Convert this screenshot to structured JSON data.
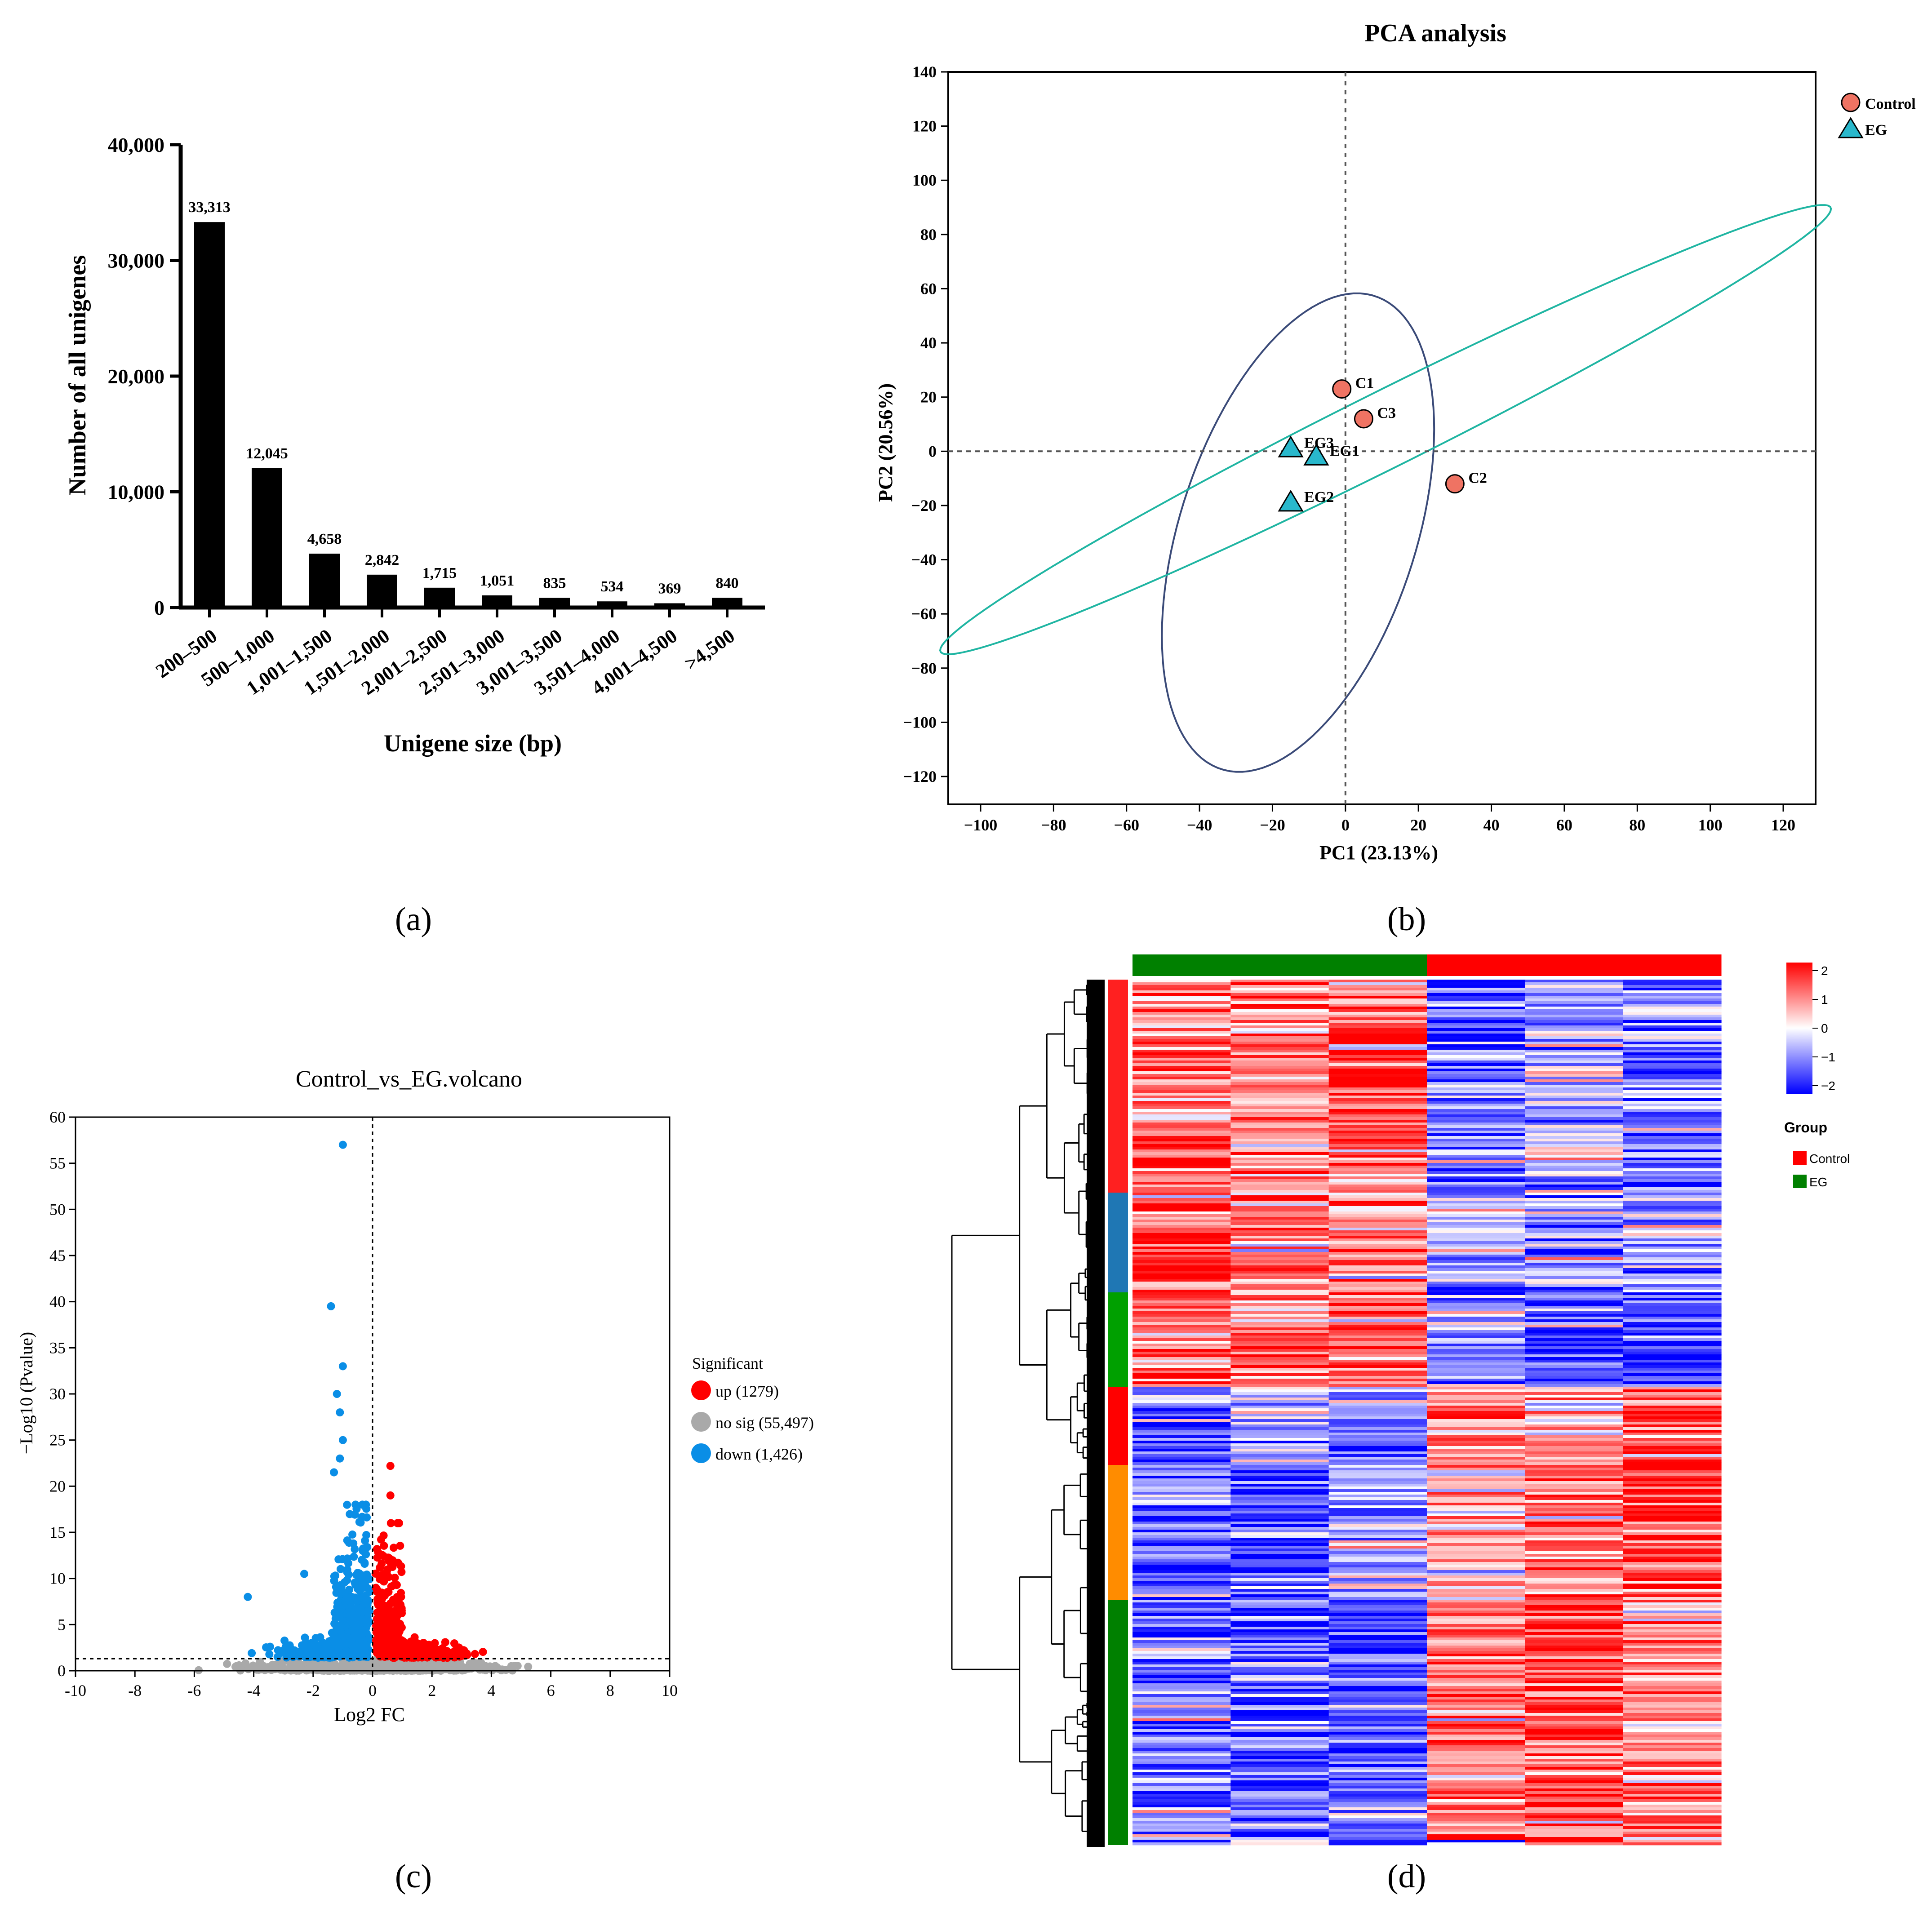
{
  "panels": {
    "a": "(a)",
    "b": "(b)",
    "c": "(c)",
    "d": "(d)"
  },
  "colors": {
    "bar": "#000000",
    "control": "#ef7363",
    "eg": "#29b8cc",
    "ellipse_control": "#3a4a78",
    "ellipse_eg": "#1fb5a2",
    "up": "#ff0000",
    "nosig": "#a9a9a9",
    "down": "#0a8ee6",
    "group_control": "#ff0000",
    "group_eg": "#008000",
    "heat_high": "#ff0000",
    "heat_mid": "#ffffff",
    "heat_low": "#0000ff"
  },
  "chart_data": [
    {
      "id": "a",
      "type": "bar",
      "title": "",
      "xlabel": "Unigene size (bp)",
      "ylabel": "Number of all unigenes",
      "ylim": [
        0,
        40000
      ],
      "yticks": [
        "0",
        "10,000",
        "20,000",
        "30,000",
        "40,000"
      ],
      "categories": [
        "200–500",
        "500–1,000",
        "1,001–1,500",
        "1,501–2,000",
        "2,001–2,500",
        "2,501–3,000",
        "3,001–3,500",
        "3,501–4,000",
        "4,001–4,500",
        ">4,500"
      ],
      "values": [
        33313,
        12045,
        4658,
        2842,
        1715,
        1051,
        835,
        534,
        369,
        840
      ],
      "value_labels": [
        "33,313",
        "12,045",
        "4,658",
        "2,842",
        "1,715",
        "1,051",
        "835",
        "534",
        "369",
        "840"
      ]
    },
    {
      "id": "b",
      "type": "scatter",
      "title": "PCA analysis",
      "xlabel": "PC1 (23.13%)",
      "ylabel": "PC2 (20.56%)",
      "xlim": [
        -100,
        120
      ],
      "ylim": [
        -120,
        140
      ],
      "xticks": [
        "−100",
        "−80",
        "−60",
        "−40",
        "−20",
        "0",
        "20",
        "40",
        "60",
        "80",
        "100",
        "120"
      ],
      "yticks": [
        "−120",
        "−100",
        "−80",
        "−60",
        "−40",
        "−20",
        "0",
        "20",
        "40",
        "60",
        "80",
        "100",
        "120",
        "140"
      ],
      "legend": [
        {
          "name": "Control"
        },
        {
          "name": "EG"
        }
      ],
      "series": [
        {
          "name": "Control",
          "marker": "circle",
          "points": [
            {
              "label": "C1",
              "x": -1,
              "y": 23
            },
            {
              "label": "C3",
              "x": 5,
              "y": 12
            },
            {
              "label": "C2",
              "x": 30,
              "y": -12
            }
          ]
        },
        {
          "name": "EG",
          "marker": "triangle",
          "points": [
            {
              "label": "EG3",
              "x": -15,
              "y": 1
            },
            {
              "label": "EG1",
              "x": -8,
              "y": -2
            },
            {
              "label": "EG2",
              "x": -15,
              "y": -19
            }
          ]
        }
      ],
      "ellipses": [
        {
          "group": "Control",
          "cx": -13,
          "cy": -30,
          "rx": 90,
          "ry": 33,
          "angle_deg": -78
        },
        {
          "group": "EG",
          "cx": 11,
          "cy": 8,
          "rx": 147,
          "ry": 13,
          "angle_deg": -34
        }
      ],
      "reference_lines": {
        "x": 0,
        "y": 0
      }
    },
    {
      "id": "c",
      "type": "scatter",
      "title": "Control_vs_EG.volcano",
      "xlabel": "Log2 FC",
      "ylabel": "−Log10 (Pvalue)",
      "xlim": [
        -10,
        10
      ],
      "ylim": [
        0,
        60
      ],
      "xticks": [
        "-10",
        "-8",
        "-6",
        "-4",
        "-2",
        "0",
        "2",
        "4",
        "6",
        "8",
        "10"
      ],
      "yticks": [
        "0",
        "5",
        "10",
        "15",
        "20",
        "25",
        "30",
        "35",
        "40",
        "45",
        "50",
        "55",
        "60"
      ],
      "threshold_y": 1.3,
      "threshold_x": 0,
      "legend_title": "Significant",
      "legend": [
        {
          "name": "up (1279)"
        },
        {
          "name": "no sig (55,497)"
        },
        {
          "name": "down (1,426)"
        }
      ],
      "highlight_points": [
        {
          "group": "down",
          "x": -1.0,
          "y": 57
        },
        {
          "group": "down",
          "x": -1.4,
          "y": 39.5
        },
        {
          "group": "down",
          "x": -1.0,
          "y": 33
        },
        {
          "group": "down",
          "x": -1.2,
          "y": 30
        },
        {
          "group": "down",
          "x": -1.1,
          "y": 28
        },
        {
          "group": "down",
          "x": -1.0,
          "y": 25
        },
        {
          "group": "down",
          "x": -1.1,
          "y": 23
        },
        {
          "group": "down",
          "x": -1.3,
          "y": 21.5
        },
        {
          "group": "up",
          "x": 0.6,
          "y": 22.2
        },
        {
          "group": "up",
          "x": 0.6,
          "y": 19
        },
        {
          "group": "down",
          "x": -4.2,
          "y": 8
        },
        {
          "group": "down",
          "x": -2.3,
          "y": 10.5
        }
      ]
    },
    {
      "id": "d",
      "type": "heatmap",
      "title": "",
      "columns": 6,
      "column_groups": [
        "EG",
        "EG",
        "EG",
        "Control",
        "Control",
        "Control"
      ],
      "color_scale": {
        "min": -2,
        "max": 2,
        "ticks": [
          "2",
          "1",
          "0",
          "−1",
          "−2"
        ]
      },
      "legend_title": "Group",
      "legend": [
        {
          "name": "Control"
        },
        {
          "name": "EG"
        }
      ],
      "row_clusters": [
        {
          "color": "#ff2020",
          "fraction": 0.245,
          "pattern": [
            1.2,
            0.9,
            1.3,
            -1.2,
            -0.6,
            -1.0
          ]
        },
        {
          "color": "#1f77b4",
          "fraction": 0.115,
          "pattern": [
            1.5,
            1.0,
            0.8,
            -0.7,
            -0.6,
            -1.1
          ]
        },
        {
          "color": "#00a000",
          "fraction": 0.11,
          "pattern": [
            1.0,
            1.0,
            1.2,
            -1.0,
            -1.3,
            -1.4
          ]
        },
        {
          "color": "#ff0000",
          "fraction": 0.09,
          "pattern": [
            -1.3,
            -0.9,
            -1.1,
            1.0,
            0.9,
            1.2
          ]
        },
        {
          "color": "#ff8c00",
          "fraction": 0.155,
          "pattern": [
            -1.2,
            -1.3,
            -0.6,
            0.4,
            1.2,
            1.4
          ]
        },
        {
          "color": "#008000",
          "fraction": 0.285,
          "pattern": [
            -1.0,
            -1.2,
            -1.4,
            1.0,
            1.4,
            0.9
          ]
        }
      ]
    }
  ]
}
